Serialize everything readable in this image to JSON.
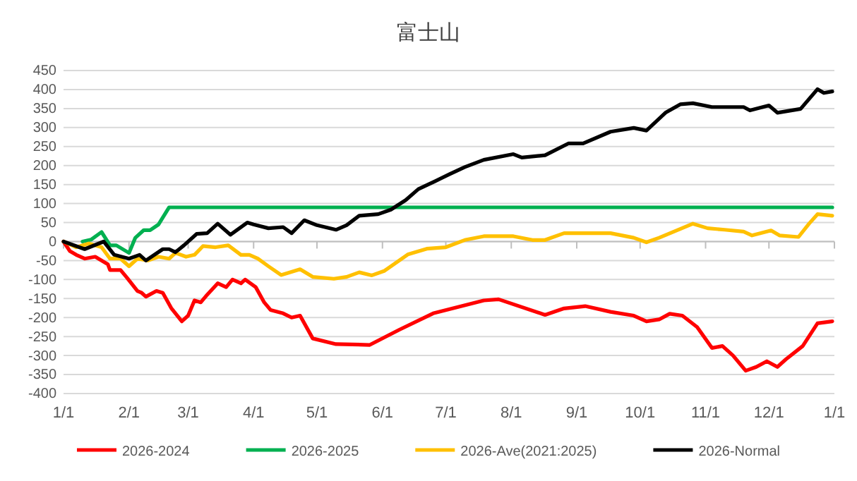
{
  "chart_data": {
    "type": "line",
    "title": "富士山",
    "xlim": [
      "2026-01-01",
      "2027-01-01"
    ],
    "xticks": [
      {
        "value": "2026-01-01",
        "label": "1/1"
      },
      {
        "value": "2026-02-01",
        "label": "2/1"
      },
      {
        "value": "2026-03-01",
        "label": "3/1"
      },
      {
        "value": "2026-04-01",
        "label": "4/1"
      },
      {
        "value": "2026-05-01",
        "label": "5/1"
      },
      {
        "value": "2026-06-01",
        "label": "6/1"
      },
      {
        "value": "2026-07-01",
        "label": "7/1"
      },
      {
        "value": "2026-08-01",
        "label": "8/1"
      },
      {
        "value": "2026-09-01",
        "label": "9/1"
      },
      {
        "value": "2026-10-01",
        "label": "10/1"
      },
      {
        "value": "2026-11-01",
        "label": "11/1"
      },
      {
        "value": "2026-12-01",
        "label": "12/1"
      },
      {
        "value": "2027-01-01",
        "label": "1/1"
      }
    ],
    "ylim": [
      -400,
      450
    ],
    "yticks": [
      -400,
      -350,
      -300,
      -250,
      -200,
      -150,
      -100,
      -50,
      0,
      50,
      100,
      150,
      200,
      250,
      300,
      350,
      400,
      450
    ],
    "grid": "y",
    "legend": "bottom",
    "line_style": "solid",
    "marker": "none",
    "series": [
      {
        "name": "2026-2024",
        "color": "#ff0000",
        "x": [
          "2026-01-01",
          "2026-01-04",
          "2026-01-07",
          "2026-01-11",
          "2026-01-16",
          "2026-01-22",
          "2026-01-23",
          "2026-01-28",
          "2026-01-31",
          "2026-02-05",
          "2026-02-07",
          "2026-02-09",
          "2026-02-14",
          "2026-02-17",
          "2026-02-21",
          "2026-02-26",
          "2026-03-01",
          "2026-03-04",
          "2026-03-07",
          "2026-03-10",
          "2026-03-15",
          "2026-03-19",
          "2026-03-22",
          "2026-03-26",
          "2026-03-28",
          "2026-04-02",
          "2026-04-06",
          "2026-04-09",
          "2026-04-15",
          "2026-04-19",
          "2026-04-23",
          "2026-04-29",
          "2026-05-10",
          "2026-05-26",
          "2026-06-09",
          "2026-06-25",
          "2026-07-19",
          "2026-07-26",
          "2026-08-17",
          "2026-08-26",
          "2026-09-05",
          "2026-09-17",
          "2026-09-28",
          "2026-10-04",
          "2026-10-10",
          "2026-10-15",
          "2026-10-21",
          "2026-10-28",
          "2026-11-04",
          "2026-11-09",
          "2026-11-14",
          "2026-11-20",
          "2026-11-25",
          "2026-11-30",
          "2026-12-05",
          "2026-12-09",
          "2026-12-17",
          "2026-12-24",
          "2026-12-31"
        ],
        "values": [
          0,
          -25,
          -35,
          -45,
          -40,
          -60,
          -75,
          -75,
          -95,
          -130,
          -135,
          -145,
          -130,
          -135,
          -175,
          -210,
          -195,
          -155,
          -160,
          -140,
          -110,
          -120,
          -100,
          -110,
          -100,
          -120,
          -160,
          -180,
          -189,
          -200,
          -195,
          -255,
          -270,
          -272,
          -232,
          -189,
          -155,
          -152,
          -193,
          -176,
          -170,
          -185,
          -195,
          -210,
          -205,
          -190,
          -195,
          -225,
          -280,
          -275,
          -300,
          -340,
          -330,
          -315,
          -330,
          -310,
          -275,
          -215,
          -210
        ]
      },
      {
        "name": "2026-2025",
        "color": "#00b050",
        "x": [
          "2026-01-10",
          "2026-01-14",
          "2026-01-19",
          "2026-01-23",
          "2026-01-26",
          "2026-02-01",
          "2026-02-04",
          "2026-02-08",
          "2026-02-11",
          "2026-02-15",
          "2026-02-20",
          "2026-12-31"
        ],
        "values": [
          0,
          5,
          25,
          -10,
          -10,
          -30,
          10,
          30,
          30,
          45,
          90,
          90
        ]
      },
      {
        "name": "2026-Ave(2021:2025)",
        "color": "#ffc000",
        "x": [
          "2026-01-01",
          "2026-01-07",
          "2026-01-13",
          "2026-01-19",
          "2026-01-23",
          "2026-01-28",
          "2026-02-01",
          "2026-02-05",
          "2026-02-10",
          "2026-02-15",
          "2026-02-20",
          "2026-02-23",
          "2026-02-28",
          "2026-03-04",
          "2026-03-08",
          "2026-03-14",
          "2026-03-20",
          "2026-03-26",
          "2026-03-30",
          "2026-04-03",
          "2026-04-08",
          "2026-04-14",
          "2026-04-23",
          "2026-04-29",
          "2026-05-09",
          "2026-05-15",
          "2026-05-21",
          "2026-05-27",
          "2026-06-02",
          "2026-06-13",
          "2026-06-22",
          "2026-07-01",
          "2026-07-10",
          "2026-07-19",
          "2026-08-02",
          "2026-08-11",
          "2026-08-17",
          "2026-08-26",
          "2026-09-04",
          "2026-09-17",
          "2026-09-28",
          "2026-10-04",
          "2026-10-10",
          "2026-10-17",
          "2026-10-26",
          "2026-11-02",
          "2026-11-10",
          "2026-11-19",
          "2026-11-23",
          "2026-12-02",
          "2026-12-06",
          "2026-12-15",
          "2026-12-20",
          "2026-12-24",
          "2026-12-31"
        ],
        "values": [
          0,
          -15,
          -5,
          -15,
          -45,
          -45,
          -65,
          -45,
          -50,
          -40,
          -45,
          -30,
          -40,
          -35,
          -12,
          -15,
          -10,
          -35,
          -35,
          -45,
          -65,
          -88,
          -73,
          -93,
          -98,
          -93,
          -81,
          -89,
          -77,
          -34,
          -19,
          -15,
          4,
          14,
          14,
          4,
          4,
          22,
          22,
          22,
          10,
          -2,
          10,
          26,
          47,
          35,
          31,
          26,
          16,
          29,
          16,
          12,
          47,
          72,
          68
        ]
      },
      {
        "name": "2026-Normal",
        "color": "#000000",
        "x": [
          "2026-01-01",
          "2026-01-11",
          "2026-01-20",
          "2026-01-25",
          "2026-02-01",
          "2026-02-06",
          "2026-02-09",
          "2026-02-17",
          "2026-02-20",
          "2026-02-23",
          "2026-02-27",
          "2026-03-05",
          "2026-03-10",
          "2026-03-15",
          "2026-03-21",
          "2026-03-29",
          "2026-04-01",
          "2026-04-08",
          "2026-04-15",
          "2026-04-19",
          "2026-04-25",
          "2026-05-01",
          "2026-05-10",
          "2026-05-15",
          "2026-05-21",
          "2026-05-30",
          "2026-06-05",
          "2026-06-12",
          "2026-06-18",
          "2026-06-26",
          "2026-07-03",
          "2026-07-10",
          "2026-07-19",
          "2026-08-02",
          "2026-08-06",
          "2026-08-17",
          "2026-08-28",
          "2026-09-04",
          "2026-09-17",
          "2026-09-28",
          "2026-10-04",
          "2026-10-13",
          "2026-10-20",
          "2026-10-26",
          "2026-11-04",
          "2026-11-19",
          "2026-11-22",
          "2026-12-01",
          "2026-12-05",
          "2026-12-16",
          "2026-12-24",
          "2026-12-27",
          "2026-12-31"
        ],
        "values": [
          0,
          -20,
          0,
          -35,
          -45,
          -35,
          -50,
          -20,
          -20,
          -28,
          -10,
          20,
          22,
          47,
          18,
          50,
          45,
          35,
          38,
          22,
          56,
          43,
          31,
          43,
          68,
          72,
          84,
          109,
          138,
          159,
          178,
          196,
          215,
          230,
          221,
          227,
          258,
          258,
          289,
          299,
          292,
          339,
          361,
          364,
          354,
          354,
          345,
          358,
          339,
          349,
          401,
          391,
          395
        ]
      }
    ]
  }
}
